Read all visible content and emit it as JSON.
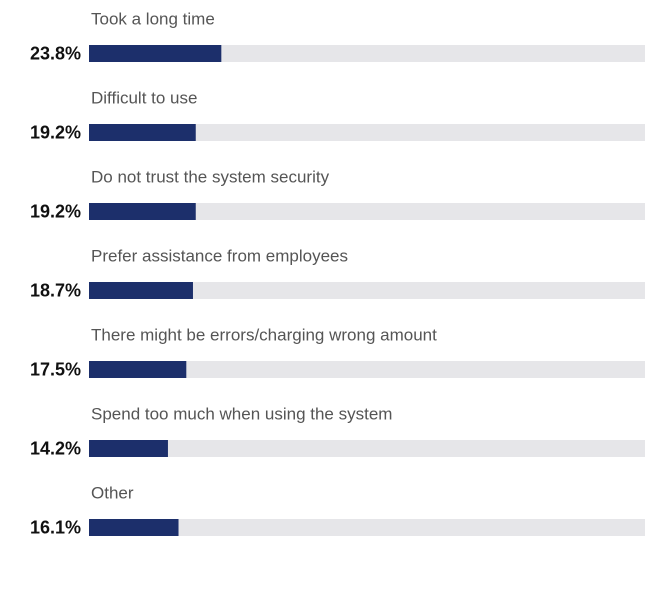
{
  "chart_data": {
    "type": "bar",
    "orientation": "horizontal",
    "categories": [
      "Took a long time",
      "Difficult to use",
      "Do not trust the system security",
      "Prefer assistance from employees",
      "There might be errors/charging wrong amount",
      "Spend too much when using the system",
      "Other"
    ],
    "values": [
      23.8,
      19.2,
      19.2,
      18.7,
      17.5,
      14.2,
      16.1
    ],
    "value_labels": [
      "23.8%",
      "19.2%",
      "19.2%",
      "18.7%",
      "17.5%",
      "14.2%",
      "16.1%"
    ],
    "color": "#1c2f6b",
    "track_color": "#e6e6e9",
    "xlim": [
      0,
      100
    ]
  }
}
